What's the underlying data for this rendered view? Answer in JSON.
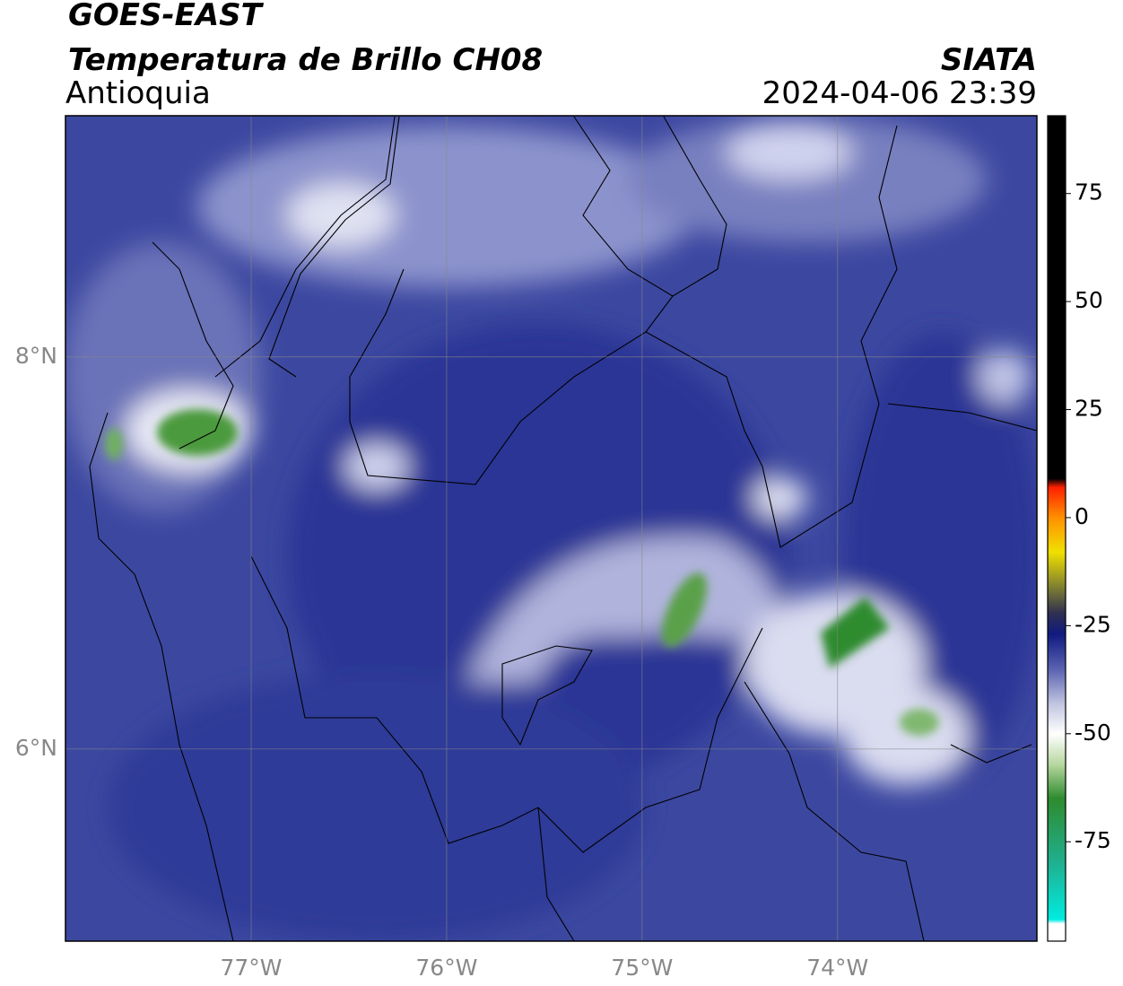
{
  "header": {
    "title": "GOES-EAST",
    "subtitle": "Temperatura de Brillo CH08",
    "region": "Antioquia",
    "source": "SIATA",
    "timestamp": "2024-04-06 23:39"
  },
  "map": {
    "lon_range": [
      -77.95,
      -72.98
    ],
    "lat_range": [
      5.02,
      9.23
    ],
    "grid": true,
    "xticks": [
      {
        "value": -77,
        "label": "77°W"
      },
      {
        "value": -76,
        "label": "76°W"
      },
      {
        "value": -75,
        "label": "75°W"
      },
      {
        "value": -74,
        "label": "74°W"
      }
    ],
    "yticks": [
      {
        "value": 8,
        "label": "8°N"
      },
      {
        "value": 6,
        "label": "6°N"
      }
    ]
  },
  "colorbar": {
    "clim": [
      -98,
      93
    ],
    "ticks": [
      75,
      50,
      25,
      0,
      -25,
      -50,
      -75
    ],
    "colormap": [
      {
        "value": -98,
        "color": "#ffffff"
      },
      {
        "value": -94,
        "color": "#ffffff"
      },
      {
        "value": -93,
        "color": "#00ece0"
      },
      {
        "value": -80,
        "color": "#20b090"
      },
      {
        "value": -65,
        "color": "#2e8b2e"
      },
      {
        "value": -57,
        "color": "#b8d8a0"
      },
      {
        "value": -50,
        "color": "#ffffff"
      },
      {
        "value": -43,
        "color": "#c0c4e0"
      },
      {
        "value": -35,
        "color": "#5a62b0"
      },
      {
        "value": -27,
        "color": "#101a80"
      },
      {
        "value": -22,
        "color": "#303050"
      },
      {
        "value": -16,
        "color": "#808030"
      },
      {
        "value": -8,
        "color": "#f0e000"
      },
      {
        "value": 0,
        "color": "#ff9000"
      },
      {
        "value": 7,
        "color": "#ff2000"
      },
      {
        "value": 9,
        "color": "#000000"
      },
      {
        "value": 93,
        "color": "#000000"
      }
    ]
  }
}
